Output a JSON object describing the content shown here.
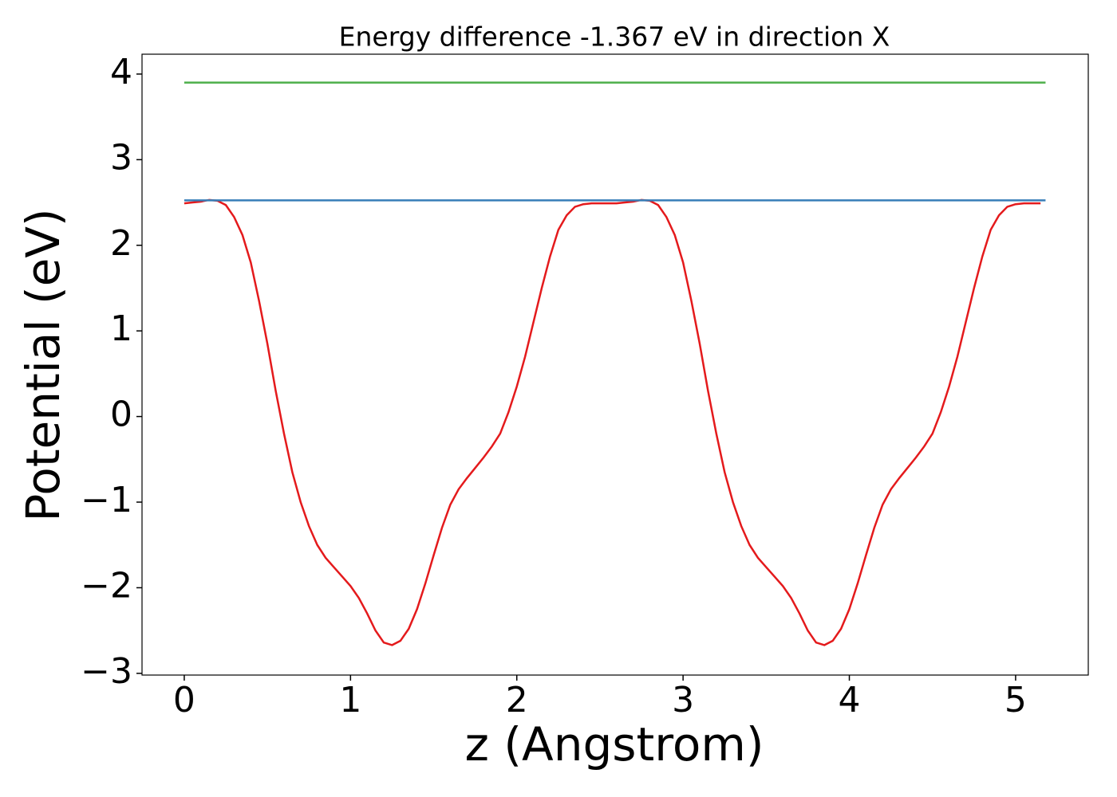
{
  "chart_data": {
    "type": "line",
    "title": "Energy difference -1.367 eV in direction X",
    "xlabel": "z (Angstrom)",
    "ylabel": "Potential (eV)",
    "xlim": [
      -0.254,
      5.437
    ],
    "ylim": [
      -3.02,
      4.232
    ],
    "xticks": [
      0,
      1,
      2,
      3,
      4,
      5
    ],
    "yticks": [
      {
        "value": -3,
        "label": "−3"
      },
      {
        "value": -2,
        "label": "−2"
      },
      {
        "value": -1,
        "label": "−1"
      },
      0,
      1,
      2,
      3,
      4
    ],
    "series": [
      {
        "color": "#e41a1c",
        "x": [
          0,
          0.05,
          0.1,
          0.15,
          0.2,
          0.25,
          0.3,
          0.35,
          0.4,
          0.45,
          0.5,
          0.55,
          0.6,
          0.65,
          0.7,
          0.75,
          0.8,
          0.85,
          0.9,
          0.95,
          1.0,
          1.05,
          1.1,
          1.15,
          1.2,
          1.25,
          1.3,
          1.35,
          1.4,
          1.45,
          1.5,
          1.55,
          1.6,
          1.65,
          1.7,
          1.75,
          1.8,
          1.85,
          1.9,
          1.95,
          2.0,
          2.05,
          2.1,
          2.15,
          2.2,
          2.25,
          2.3,
          2.35,
          2.4,
          2.45,
          2.5,
          2.55,
          2.6,
          2.65,
          2.7,
          2.75,
          2.8,
          2.85,
          2.9,
          2.95,
          3.0,
          3.05,
          3.1,
          3.15,
          3.2,
          3.25,
          3.3,
          3.35,
          3.4,
          3.45,
          3.5,
          3.55,
          3.6,
          3.65,
          3.7,
          3.75,
          3.8,
          3.85,
          3.9,
          3.95,
          4.0,
          4.05,
          4.1,
          4.15,
          4.2,
          4.25,
          4.3,
          4.35,
          4.4,
          4.45,
          4.5,
          4.55,
          4.6,
          4.65,
          4.7,
          4.75,
          4.8,
          4.85,
          4.9,
          4.95,
          5.0,
          5.05,
          5.1,
          5.15
        ],
        "values": [
          2.49,
          2.5,
          2.51,
          2.53,
          2.52,
          2.47,
          2.33,
          2.12,
          1.8,
          1.35,
          0.85,
          0.3,
          -0.2,
          -0.65,
          -1.0,
          -1.28,
          -1.5,
          -1.65,
          -1.76,
          -1.87,
          -1.98,
          -2.12,
          -2.3,
          -2.5,
          -2.64,
          -2.67,
          -2.62,
          -2.48,
          -2.25,
          -1.95,
          -1.62,
          -1.3,
          -1.03,
          -0.85,
          -0.72,
          -0.6,
          -0.48,
          -0.35,
          -0.2,
          0.05,
          0.35,
          0.7,
          1.1,
          1.5,
          1.87,
          2.18,
          2.35,
          2.45,
          2.48,
          2.49,
          2.49,
          2.49,
          2.49,
          2.5,
          2.51,
          2.53,
          2.52,
          2.47,
          2.33,
          2.12,
          1.8,
          1.35,
          0.85,
          0.3,
          -0.2,
          -0.65,
          -1.0,
          -1.28,
          -1.5,
          -1.65,
          -1.76,
          -1.87,
          -1.98,
          -2.12,
          -2.3,
          -2.5,
          -2.64,
          -2.67,
          -2.62,
          -2.48,
          -2.25,
          -1.95,
          -1.62,
          -1.3,
          -1.03,
          -0.85,
          -0.72,
          -0.6,
          -0.48,
          -0.35,
          -0.2,
          0.05,
          0.35,
          0.7,
          1.1,
          1.5,
          1.87,
          2.18,
          2.35,
          2.45,
          2.48,
          2.49,
          2.49,
          2.49
        ]
      },
      {
        "color": "#377eb8",
        "x": [
          0,
          5.18
        ],
        "values": [
          2.525,
          2.525
        ]
      },
      {
        "color": "#4daf4a",
        "x": [
          0,
          5.18
        ],
        "values": [
          3.9,
          3.9
        ]
      }
    ]
  }
}
